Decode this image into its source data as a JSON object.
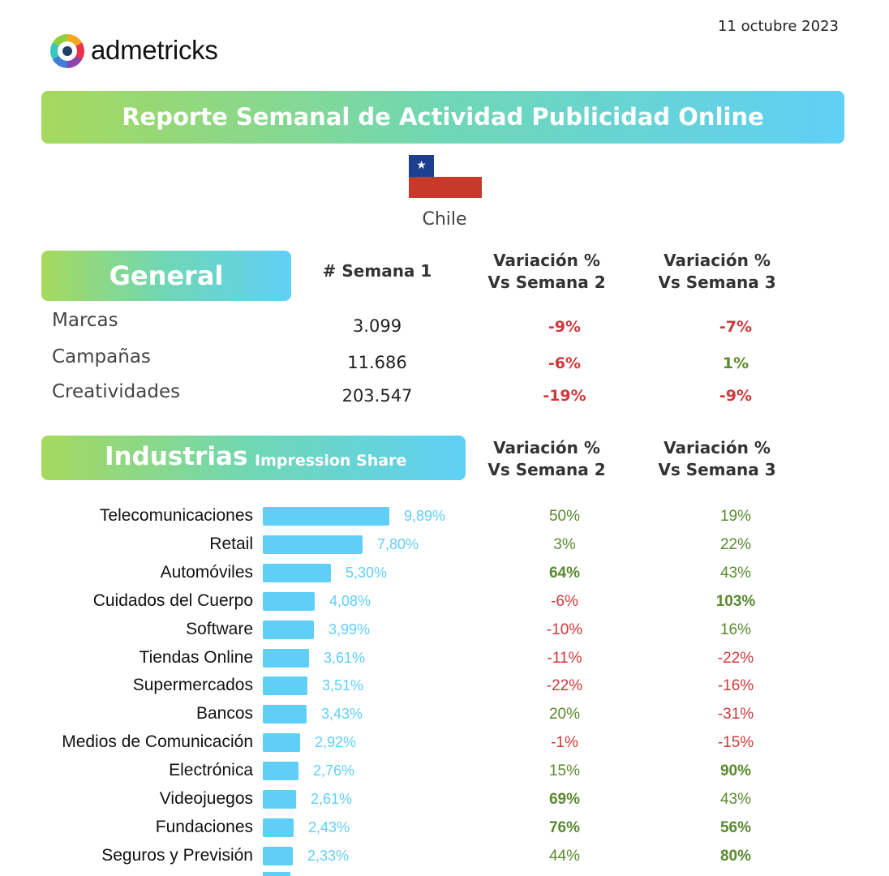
{
  "brand": {
    "logo_text": "admetricks"
  },
  "date": "11 octubre 2023",
  "title": "Reporte Semanal de Actividad Publicidad Online",
  "country": "Chile",
  "general": {
    "section_label": "General",
    "col_semana": "# Semana 1",
    "col_var2": [
      "Variación %",
      "Vs Semana 2"
    ],
    "col_var3": [
      "Variación %",
      "Vs Semana 3"
    ],
    "rows": [
      {
        "label": "Marcas",
        "value": "3.099",
        "var2": "-9%",
        "var3": "-7%"
      },
      {
        "label": "Campañas",
        "value": "11.686",
        "var2": "-6%",
        "var3": "1%"
      },
      {
        "label": "Creatividades",
        "value": "203.547",
        "var2": "-19%",
        "var3": "-9%"
      }
    ]
  },
  "industrias": {
    "section_label": "Industrias",
    "sub_label": "Impression Share",
    "col_var2": [
      "Variación %",
      "Vs Semana 2"
    ],
    "col_var3": [
      "Variación %",
      "Vs Semana 3"
    ],
    "rows": [
      {
        "label": "Telecomunicaciones",
        "share": 9.89,
        "share_label": "9,89%",
        "var2": "50%",
        "var3": "19%"
      },
      {
        "label": "Retail",
        "share": 7.8,
        "share_label": "7,80%",
        "var2": "3%",
        "var3": "22%"
      },
      {
        "label": "Automóviles",
        "share": 5.3,
        "share_label": "5,30%",
        "var2": "64%",
        "var3": "43%"
      },
      {
        "label": "Cuidados del Cuerpo",
        "share": 4.08,
        "share_label": "4,08%",
        "var2": "-6%",
        "var3": "103%"
      },
      {
        "label": "Software",
        "share": 3.99,
        "share_label": "3,99%",
        "var2": "-10%",
        "var3": "16%"
      },
      {
        "label": "Tiendas Online",
        "share": 3.61,
        "share_label": "3,61%",
        "var2": "-11%",
        "var3": "-22%"
      },
      {
        "label": "Supermercados",
        "share": 3.51,
        "share_label": "3,51%",
        "var2": "-22%",
        "var3": "-16%"
      },
      {
        "label": "Bancos",
        "share": 3.43,
        "share_label": "3,43%",
        "var2": "20%",
        "var3": "-31%"
      },
      {
        "label": "Medios de Comunicación",
        "share": 2.92,
        "share_label": "2,92%",
        "var2": "-1%",
        "var3": "-15%"
      },
      {
        "label": "Electrónica",
        "share": 2.76,
        "share_label": "2,76%",
        "var2": "15%",
        "var3": "90%"
      },
      {
        "label": "Videojuegos",
        "share": 2.61,
        "share_label": "2,61%",
        "var2": "69%",
        "var3": "43%"
      },
      {
        "label": "Fundaciones",
        "share": 2.43,
        "share_label": "2,43%",
        "var2": "76%",
        "var3": "56%"
      },
      {
        "label": "Seguros y Previsión",
        "share": 2.33,
        "share_label": "2,33%",
        "var2": "44%",
        "var3": "80%"
      }
    ]
  },
  "colors": {
    "positive": "#5a8a2f",
    "negative": "#d0393b",
    "bar": "#5fcff8"
  }
}
